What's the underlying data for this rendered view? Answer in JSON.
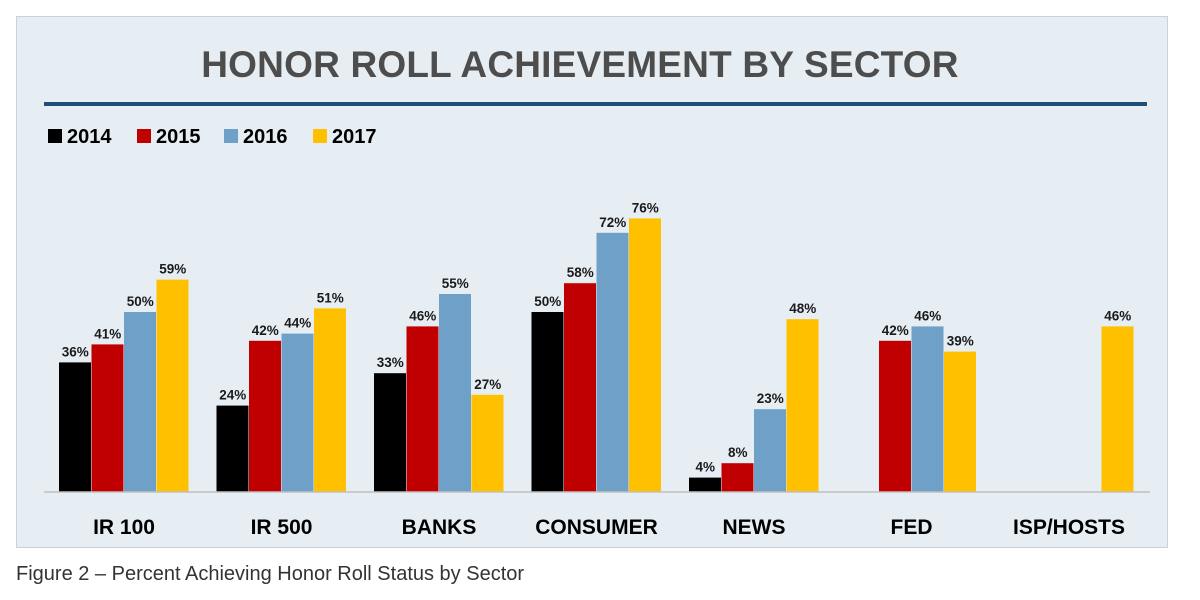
{
  "caption": "Figure 2 – Percent Achieving Honor Roll Status by Sector",
  "chart_data": {
    "type": "bar",
    "title": "HONOR ROLL ACHIEVEMENT BY SECTOR",
    "xlabel": "",
    "ylabel": "",
    "ylim": [
      0,
      80
    ],
    "grid": false,
    "legend_position": "top-left",
    "value_suffix": "%",
    "categories": [
      "IR 100",
      "IR 500",
      "BANKS",
      "CONSUMER",
      "NEWS",
      "FED",
      "ISP/HOSTS"
    ],
    "series": [
      {
        "name": "2014",
        "color": "#000000",
        "values": [
          36,
          24,
          33,
          50,
          4,
          null,
          null
        ]
      },
      {
        "name": "2015",
        "color": "#c00000",
        "values": [
          41,
          42,
          46,
          58,
          8,
          42,
          null
        ]
      },
      {
        "name": "2016",
        "color": "#6fa0c8",
        "values": [
          50,
          44,
          55,
          72,
          23,
          46,
          null
        ]
      },
      {
        "name": "2017",
        "color": "#ffc000",
        "values": [
          59,
          51,
          27,
          76,
          48,
          39,
          46
        ]
      }
    ]
  }
}
